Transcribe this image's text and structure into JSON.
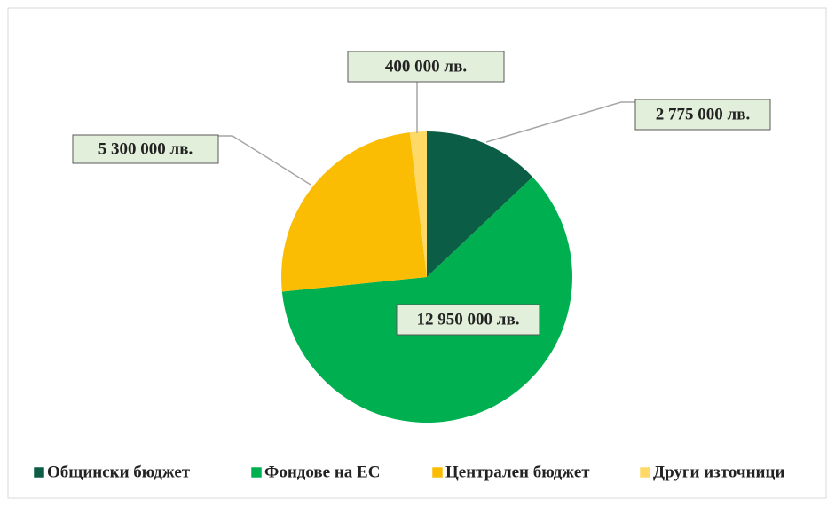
{
  "chart_data": {
    "type": "pie",
    "categories": [
      "Общински бюджет",
      "Фондове на ЕС",
      "Централен бюджет",
      "Други източници"
    ],
    "values": [
      2775000,
      12950000,
      5300000,
      400000
    ],
    "value_labels": [
      "2 775 000 лв.",
      "12 950 000 лв.",
      "5 300 000 лв.",
      "400 000 лв."
    ],
    "colors": [
      "#0b5e45",
      "#00b050",
      "#fbbc04",
      "#ffd966"
    ],
    "legend": "bottom"
  }
}
